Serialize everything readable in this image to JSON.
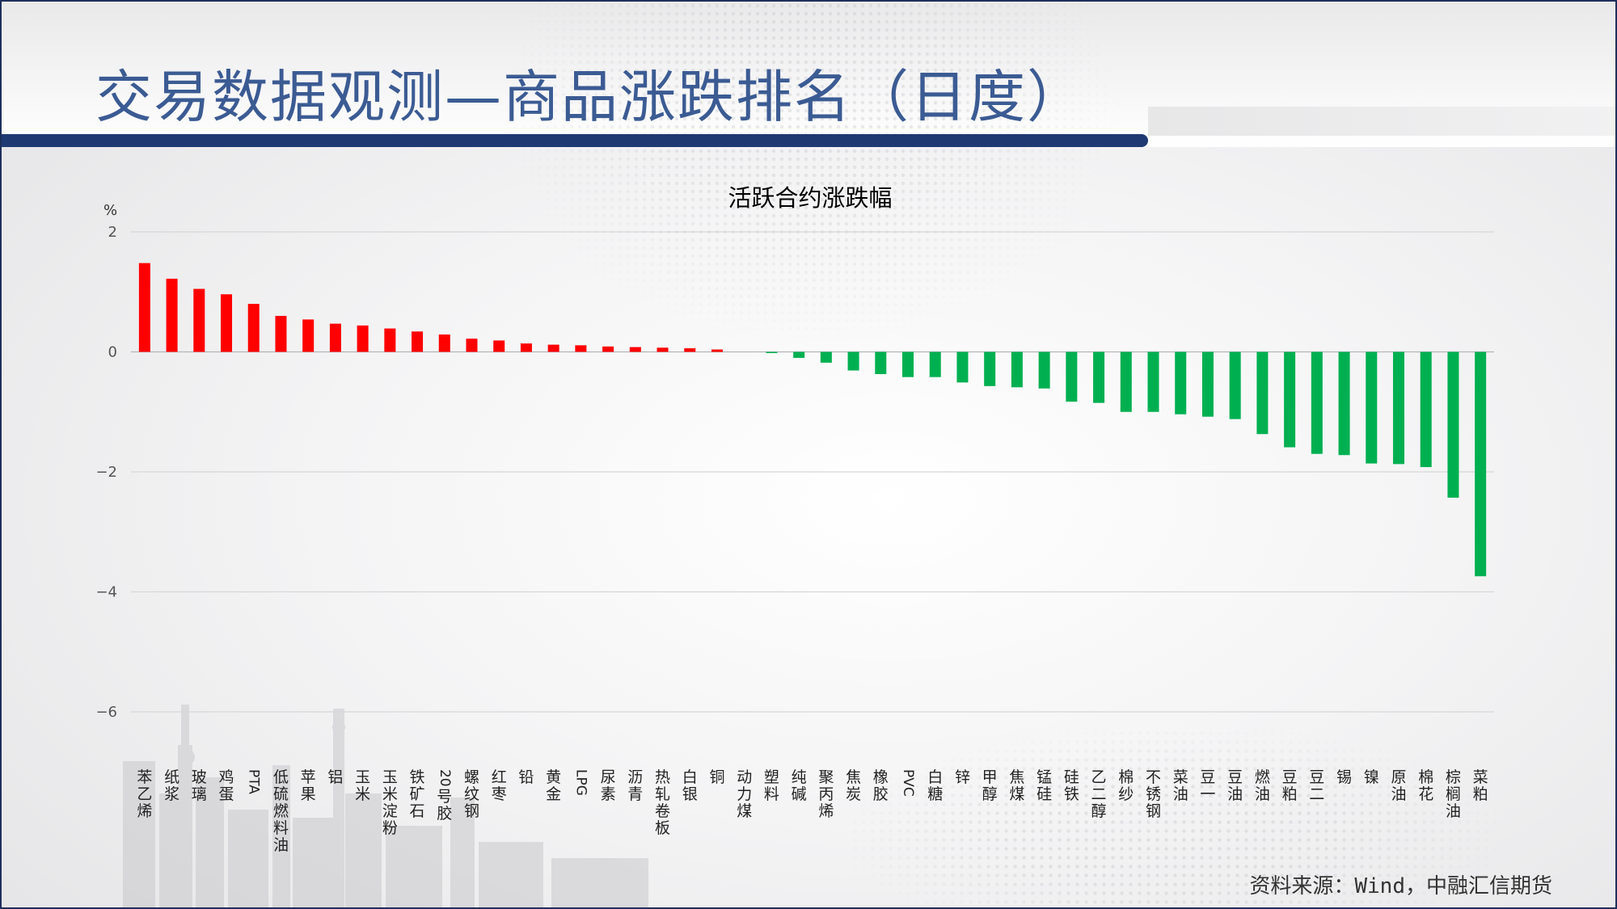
{
  "header": {
    "title": "交易数据观测—商品涨跌排名（日度）"
  },
  "chart_data": {
    "type": "bar",
    "title": "活跃合约涨跌幅",
    "ylabel": "%",
    "ylim": [
      -6,
      2
    ],
    "yticks": [
      2,
      0,
      -2,
      -4,
      -6
    ],
    "ytick_labels": [
      "2",
      "0",
      "−2",
      "−4",
      "−6"
    ],
    "grid": true,
    "colors": {
      "positive": "#ff0000",
      "negative": "#00b050"
    },
    "categories": [
      "苯乙烯",
      "纸浆",
      "玻璃",
      "鸡蛋",
      "PTA",
      "低硫燃料油",
      "苹果",
      "铝",
      "玉米",
      "玉米淀粉",
      "铁矿石",
      "20号胶",
      "螺纹钢",
      "红枣",
      "铅",
      "黄金",
      "LPG",
      "尿素",
      "沥青",
      "热轧卷板",
      "白银",
      "铜",
      "动力煤",
      "塑料",
      "纯碱",
      "聚丙烯",
      "焦炭",
      "橡胶",
      "PVC",
      "白糖",
      "锌",
      "甲醇",
      "焦煤",
      "锰硅",
      "硅铁",
      "乙二醇",
      "棉纱",
      "不锈钢",
      "菜油",
      "豆一",
      "豆油",
      "燃油",
      "豆粕",
      "豆二",
      "锡",
      "镍",
      "原油",
      "棉花",
      "棕榈油",
      "菜粕"
    ],
    "values": [
      1.48,
      1.22,
      1.05,
      0.96,
      0.8,
      0.6,
      0.54,
      0.47,
      0.44,
      0.39,
      0.34,
      0.29,
      0.22,
      0.19,
      0.14,
      0.12,
      0.11,
      0.09,
      0.08,
      0.07,
      0.06,
      0.04,
      0.0,
      -0.02,
      -0.1,
      -0.18,
      -0.31,
      -0.37,
      -0.42,
      -0.42,
      -0.51,
      -0.57,
      -0.59,
      -0.61,
      -0.83,
      -0.85,
      -1.0,
      -1.0,
      -1.04,
      -1.08,
      -1.12,
      -1.37,
      -1.59,
      -1.7,
      -1.72,
      -1.86,
      -1.87,
      -1.92,
      -2.43,
      -3.74
    ]
  },
  "footer": {
    "source": "资料来源：Wind，中融汇信期货"
  }
}
